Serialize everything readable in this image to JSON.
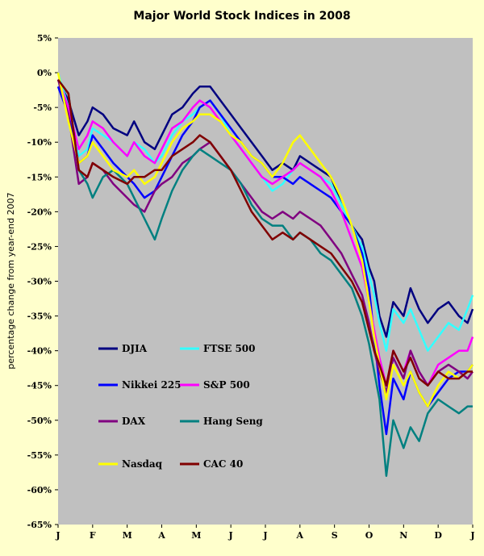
{
  "chart_data": {
    "type": "line",
    "title": "Major World Stock Indices in 2008",
    "xlabel": "",
    "ylabel": "percentage change from year-end 2007",
    "x_ticks": [
      "J",
      "F",
      "M",
      "A",
      "M",
      "J",
      "J",
      "A",
      "S",
      "O",
      "N",
      "D",
      "J"
    ],
    "y_ticks": [
      "5%",
      "0%",
      "-5%",
      "-10%",
      "-15%",
      "-20%",
      "-25%",
      "-30%",
      "-35%",
      "-40%",
      "-45%",
      "-50%",
      "-55%",
      "-60%",
      "-65%"
    ],
    "ylim": [
      -65,
      5
    ],
    "xlim": [
      0,
      12
    ],
    "grid": false,
    "legend": "inside-lower-left",
    "plot_background": "#c0c0c0",
    "page_background": "#ffffcc",
    "series": [
      {
        "name": "DJIA",
        "color": "#000080",
        "x": [
          0,
          0.3,
          0.6,
          0.85,
          1.0,
          1.3,
          1.6,
          2.0,
          2.2,
          2.5,
          2.8,
          3.0,
          3.3,
          3.6,
          3.9,
          4.1,
          4.4,
          4.7,
          5.0,
          5.3,
          5.6,
          5.9,
          6.2,
          6.5,
          6.8,
          7.0,
          7.3,
          7.6,
          7.9,
          8.2,
          8.5,
          8.8,
          9.0,
          9.15,
          9.3,
          9.5,
          9.7,
          10.0,
          10.2,
          10.45,
          10.7,
          11.0,
          11.3,
          11.6,
          11.85,
          12.0
        ],
        "y": [
          -1,
          -4,
          -9,
          -7,
          -5,
          -6,
          -8,
          -9,
          -7,
          -10,
          -11,
          -9,
          -6,
          -5,
          -3,
          -2,
          -2,
          -4,
          -6,
          -8,
          -10,
          -12,
          -14,
          -13,
          -14,
          -12,
          -13,
          -14,
          -15,
          -19,
          -22,
          -24,
          -28,
          -30,
          -35,
          -38,
          -33,
          -35,
          -31,
          -34,
          -36,
          -34,
          -33,
          -35,
          -36,
          -34
        ]
      },
      {
        "name": "FTSE 500",
        "color": "#33ffff",
        "x": [
          0,
          0.3,
          0.6,
          0.85,
          1.0,
          1.3,
          1.6,
          2.0,
          2.2,
          2.5,
          2.8,
          3.0,
          3.3,
          3.6,
          3.9,
          4.1,
          4.4,
          4.7,
          5.0,
          5.3,
          5.6,
          5.9,
          6.2,
          6.5,
          6.8,
          7.0,
          7.3,
          7.6,
          7.9,
          8.2,
          8.5,
          8.8,
          9.0,
          9.15,
          9.3,
          9.5,
          9.7,
          10.0,
          10.2,
          10.45,
          10.7,
          11.0,
          11.3,
          11.6,
          11.85,
          12.0
        ],
        "y": [
          0,
          -5,
          -12,
          -11,
          -8,
          -9,
          -10,
          -12,
          -10,
          -11,
          -13,
          -12,
          -9,
          -7,
          -6,
          -5,
          -4,
          -6,
          -9,
          -11,
          -13,
          -15,
          -17,
          -16,
          -14,
          -13,
          -14,
          -15,
          -16,
          -19,
          -22,
          -25,
          -29,
          -32,
          -36,
          -40,
          -34,
          -36,
          -34,
          -37,
          -40,
          -38,
          -36,
          -37,
          -34,
          -32
        ]
      },
      {
        "name": "Nikkei 225",
        "color": "#0000ff",
        "x": [
          0,
          0.3,
          0.6,
          0.85,
          1.0,
          1.3,
          1.6,
          2.0,
          2.2,
          2.5,
          2.8,
          3.0,
          3.3,
          3.6,
          3.9,
          4.1,
          4.4,
          4.7,
          5.0,
          5.3,
          5.6,
          5.9,
          6.2,
          6.5,
          6.8,
          7.0,
          7.3,
          7.6,
          7.9,
          8.2,
          8.5,
          8.8,
          9.0,
          9.15,
          9.3,
          9.5,
          9.7,
          10.0,
          10.2,
          10.45,
          10.7,
          11.0,
          11.3,
          11.6,
          11.85,
          12.0
        ],
        "y": [
          -2,
          -6,
          -13,
          -12,
          -9,
          -11,
          -13,
          -15,
          -16,
          -18,
          -17,
          -15,
          -12,
          -9,
          -7,
          -5,
          -4,
          -6,
          -8,
          -10,
          -12,
          -13,
          -15,
          -15,
          -16,
          -15,
          -16,
          -17,
          -18,
          -20,
          -22,
          -26,
          -31,
          -38,
          -45,
          -52,
          -44,
          -47,
          -43,
          -46,
          -48,
          -46,
          -44,
          -43,
          -43,
          -42
        ]
      },
      {
        "name": "S&P 500",
        "color": "#ff00ff",
        "x": [
          0,
          0.3,
          0.6,
          0.85,
          1.0,
          1.3,
          1.6,
          2.0,
          2.2,
          2.5,
          2.8,
          3.0,
          3.3,
          3.6,
          3.9,
          4.1,
          4.4,
          4.7,
          5.0,
          5.3,
          5.6,
          5.9,
          6.2,
          6.5,
          6.8,
          7.0,
          7.3,
          7.6,
          7.9,
          8.2,
          8.5,
          8.8,
          9.0,
          9.15,
          9.3,
          9.5,
          9.7,
          10.0,
          10.2,
          10.45,
          10.7,
          11.0,
          11.3,
          11.6,
          11.85,
          12.0
        ],
        "y": [
          -1,
          -5,
          -11,
          -9,
          -7,
          -8,
          -10,
          -12,
          -10,
          -12,
          -13,
          -11,
          -8,
          -7,
          -5,
          -4,
          -5,
          -7,
          -9,
          -11,
          -13,
          -15,
          -16,
          -15,
          -14,
          -13,
          -14,
          -15,
          -17,
          -20,
          -24,
          -28,
          -33,
          -37,
          -41,
          -45,
          -40,
          -43,
          -40,
          -43,
          -45,
          -42,
          -41,
          -40,
          -40,
          -38
        ]
      },
      {
        "name": "DAX",
        "color": "#800080",
        "x": [
          0,
          0.3,
          0.6,
          0.85,
          1.0,
          1.3,
          1.6,
          2.0,
          2.2,
          2.5,
          2.8,
          3.0,
          3.3,
          3.6,
          3.9,
          4.1,
          4.4,
          4.7,
          5.0,
          5.3,
          5.6,
          5.9,
          6.2,
          6.5,
          6.8,
          7.0,
          7.3,
          7.6,
          7.9,
          8.2,
          8.5,
          8.8,
          9.0,
          9.15,
          9.3,
          9.5,
          9.7,
          10.0,
          10.2,
          10.45,
          10.7,
          11.0,
          11.3,
          11.6,
          11.85,
          12.0
        ],
        "y": [
          -1,
          -6,
          -16,
          -15,
          -13,
          -14,
          -16,
          -18,
          -19,
          -20,
          -17,
          -16,
          -15,
          -13,
          -12,
          -11,
          -10,
          -12,
          -14,
          -16,
          -18,
          -20,
          -21,
          -20,
          -21,
          -20,
          -21,
          -22,
          -24,
          -26,
          -29,
          -32,
          -36,
          -40,
          -43,
          -46,
          -41,
          -44,
          -40,
          -43,
          -45,
          -43,
          -42,
          -43,
          -44,
          -43
        ]
      },
      {
        "name": "Hang Seng",
        "color": "#008080",
        "x": [
          0,
          0.3,
          0.6,
          0.85,
          1.0,
          1.3,
          1.6,
          2.0,
          2.2,
          2.5,
          2.8,
          3.0,
          3.3,
          3.6,
          3.9,
          4.1,
          4.4,
          4.7,
          5.0,
          5.3,
          5.6,
          5.9,
          6.2,
          6.5,
          6.8,
          7.0,
          7.3,
          7.6,
          7.9,
          8.2,
          8.5,
          8.8,
          9.0,
          9.15,
          9.3,
          9.5,
          9.7,
          10.0,
          10.2,
          10.45,
          10.7,
          11.0,
          11.3,
          11.6,
          11.85,
          12.0
        ],
        "y": [
          -1,
          -3,
          -14,
          -16,
          -18,
          -15,
          -14,
          -16,
          -18,
          -21,
          -24,
          -21,
          -17,
          -14,
          -12,
          -11,
          -12,
          -13,
          -14,
          -16,
          -19,
          -21,
          -22,
          -22,
          -24,
          -23,
          -24,
          -26,
          -27,
          -29,
          -31,
          -35,
          -39,
          -43,
          -47,
          -58,
          -50,
          -54,
          -51,
          -53,
          -49,
          -47,
          -48,
          -49,
          -48,
          -48
        ]
      },
      {
        "name": "Nasdaq",
        "color": "#ffff00",
        "x": [
          0,
          0.3,
          0.6,
          0.85,
          1.0,
          1.3,
          1.6,
          2.0,
          2.2,
          2.5,
          2.8,
          3.0,
          3.3,
          3.6,
          3.9,
          4.1,
          4.4,
          4.7,
          5.0,
          5.3,
          5.6,
          5.9,
          6.2,
          6.5,
          6.8,
          7.0,
          7.3,
          7.6,
          7.9,
          8.2,
          8.5,
          8.8,
          9.0,
          9.15,
          9.3,
          9.5,
          9.7,
          10.0,
          10.2,
          10.45,
          10.7,
          11.0,
          11.3,
          11.6,
          11.85,
          12.0
        ],
        "y": [
          0,
          -7,
          -13,
          -12,
          -10,
          -12,
          -14,
          -15,
          -14,
          -16,
          -15,
          -13,
          -10,
          -8,
          -7,
          -6,
          -6,
          -7,
          -9,
          -10,
          -12,
          -13,
          -15,
          -13,
          -10,
          -9,
          -11,
          -13,
          -15,
          -18,
          -22,
          -27,
          -33,
          -38,
          -42,
          -47,
          -42,
          -45,
          -43,
          -46,
          -48,
          -45,
          -43,
          -44,
          -43,
          -42
        ]
      },
      {
        "name": "CAC 40",
        "color": "#800000",
        "x": [
          0,
          0.3,
          0.6,
          0.85,
          1.0,
          1.3,
          1.6,
          2.0,
          2.2,
          2.5,
          2.8,
          3.0,
          3.3,
          3.6,
          3.9,
          4.1,
          4.4,
          4.7,
          5.0,
          5.3,
          5.6,
          5.9,
          6.2,
          6.5,
          6.8,
          7.0,
          7.3,
          7.6,
          7.9,
          8.2,
          8.5,
          8.8,
          9.0,
          9.15,
          9.3,
          9.5,
          9.7,
          10.0,
          10.2,
          10.45,
          10.7,
          11.0,
          11.3,
          11.6,
          11.85,
          12.0
        ],
        "y": [
          -1,
          -3,
          -14,
          -15,
          -13,
          -14,
          -15,
          -16,
          -15,
          -15,
          -14,
          -14,
          -12,
          -11,
          -10,
          -9,
          -10,
          -12,
          -14,
          -17,
          -20,
          -22,
          -24,
          -23,
          -24,
          -23,
          -24,
          -25,
          -26,
          -28,
          -30,
          -33,
          -37,
          -40,
          -42,
          -45,
          -40,
          -43,
          -41,
          -44,
          -45,
          -43,
          -44,
          -44,
          -43,
          -43
        ]
      }
    ]
  }
}
